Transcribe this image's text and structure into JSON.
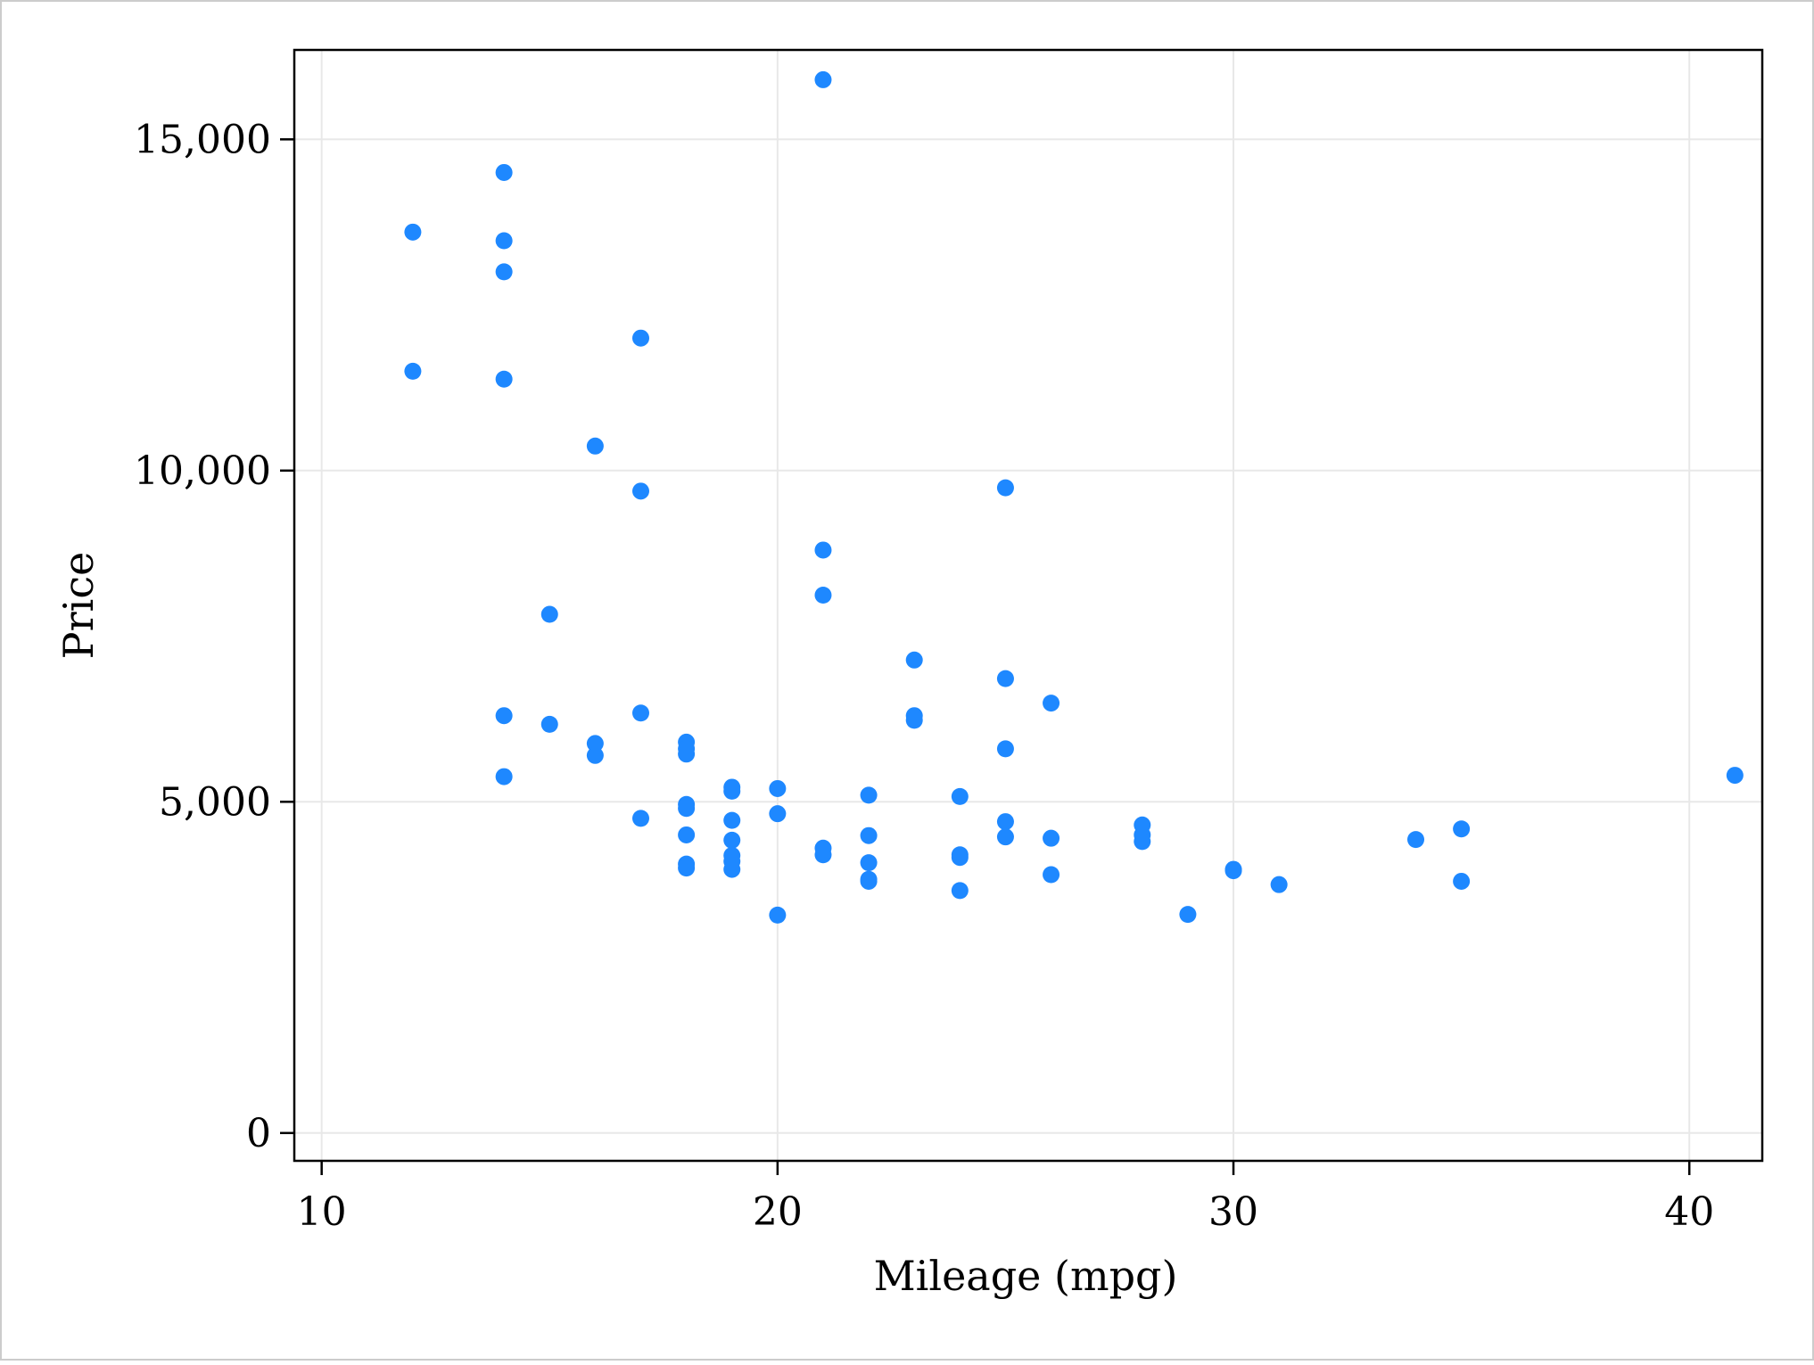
{
  "chart_data": {
    "type": "scatter",
    "title": "",
    "xlabel": "Mileage (mpg)",
    "ylabel": "Price",
    "xlim": [
      9.4,
      41.6
    ],
    "ylim": [
      -420,
      16350
    ],
    "xticks": [
      10,
      20,
      30,
      40
    ],
    "xtick_labels": [
      "10",
      "20",
      "30",
      "40"
    ],
    "yticks": [
      0,
      5000,
      10000,
      15000
    ],
    "ytick_labels": [
      "0",
      "5,000",
      "10,000",
      "15,000"
    ],
    "grid": true,
    "legend": "none",
    "colors": {
      "marker": "#1e88ff",
      "grid": "#e8e8e8",
      "frame": "#000000",
      "border": "#cccccc"
    },
    "series": [
      {
        "points": [
          [
            12,
            13600
          ],
          [
            12,
            11500
          ],
          [
            14,
            14500
          ],
          [
            14,
            13470
          ],
          [
            14,
            13000
          ],
          [
            14,
            11380
          ],
          [
            14,
            6300
          ],
          [
            14,
            5380
          ],
          [
            15,
            7830
          ],
          [
            15,
            6170
          ],
          [
            16,
            10370
          ],
          [
            16,
            5880
          ],
          [
            16,
            5700
          ],
          [
            17,
            12000
          ],
          [
            17,
            9690
          ],
          [
            17,
            6340
          ],
          [
            17,
            4750
          ],
          [
            18,
            5900
          ],
          [
            18,
            5800
          ],
          [
            18,
            5720
          ],
          [
            18,
            4960
          ],
          [
            18,
            4900
          ],
          [
            18,
            4500
          ],
          [
            18,
            4060
          ],
          [
            18,
            4000
          ],
          [
            19,
            5220
          ],
          [
            19,
            5160
          ],
          [
            19,
            4720
          ],
          [
            19,
            4420
          ],
          [
            19,
            4190
          ],
          [
            19,
            4100
          ],
          [
            19,
            3980
          ],
          [
            20,
            5200
          ],
          [
            20,
            4820
          ],
          [
            20,
            3290
          ],
          [
            21,
            15900
          ],
          [
            21,
            8800
          ],
          [
            21,
            8120
          ],
          [
            21,
            4300
          ],
          [
            21,
            4200
          ],
          [
            22,
            5100
          ],
          [
            22,
            4490
          ],
          [
            22,
            4080
          ],
          [
            22,
            3830
          ],
          [
            22,
            3800
          ],
          [
            23,
            7140
          ],
          [
            23,
            6300
          ],
          [
            23,
            6230
          ],
          [
            24,
            5080
          ],
          [
            24,
            4200
          ],
          [
            24,
            4160
          ],
          [
            24,
            3660
          ],
          [
            25,
            9740
          ],
          [
            25,
            6860
          ],
          [
            25,
            5800
          ],
          [
            25,
            4700
          ],
          [
            25,
            4470
          ],
          [
            26,
            6490
          ],
          [
            26,
            4450
          ],
          [
            26,
            3900
          ],
          [
            28,
            4650
          ],
          [
            28,
            4500
          ],
          [
            28,
            4400
          ],
          [
            29,
            3300
          ],
          [
            30,
            3980
          ],
          [
            30,
            3960
          ],
          [
            31,
            3750
          ],
          [
            34,
            4430
          ],
          [
            35,
            4590
          ],
          [
            35,
            3800
          ],
          [
            41,
            5400
          ]
        ]
      }
    ]
  }
}
